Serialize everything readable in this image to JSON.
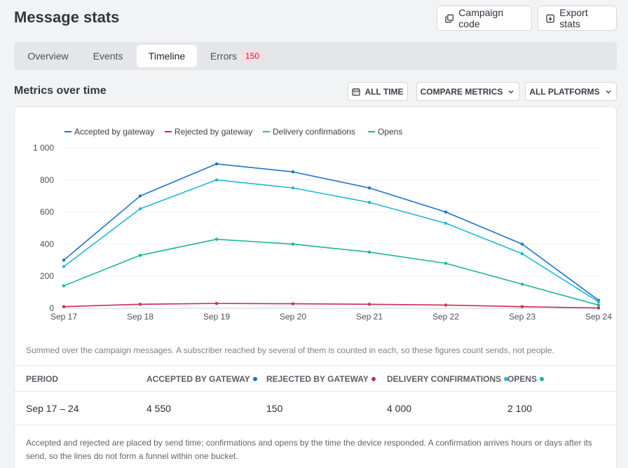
{
  "header": {
    "title": "Message stats",
    "campaign_code_label": "Campaign code",
    "export_stats_label": "Export stats"
  },
  "tabs": [
    {
      "label": "Overview",
      "active": false
    },
    {
      "label": "Events",
      "active": false
    },
    {
      "label": "Timeline",
      "active": true
    },
    {
      "label": "Errors",
      "active": false,
      "badge": "150"
    }
  ],
  "section": {
    "title": "Metrics over time",
    "time_filter_label": "ALL TIME",
    "compare_label": "COMPARE METRICS",
    "platforms_label": "ALL PLATFORMS"
  },
  "colors": {
    "accepted": "#1a73d0",
    "rejected": "#cc2a54",
    "delivery": "#1eb8d8",
    "opens": "#17b89a"
  },
  "chart_data": {
    "type": "line",
    "x": [
      "Sep 17",
      "Sep 18",
      "Sep 19",
      "Sep 20",
      "Sep 21",
      "Sep 22",
      "Sep 23",
      "Sep 24"
    ],
    "ylim": [
      0,
      1000
    ],
    "yticks": [
      "0",
      "200",
      "400",
      "600",
      "800",
      "1 000"
    ],
    "grid": true,
    "legend_position": "top-left",
    "series": [
      {
        "name": "Accepted by gateway",
        "color": "#1a73d0",
        "values": [
          300,
          700,
          900,
          850,
          750,
          600,
          400,
          50
        ]
      },
      {
        "name": "Rejected by gateway",
        "color": "#cc2a54",
        "values": [
          10,
          25,
          30,
          28,
          25,
          20,
          10,
          2
        ]
      },
      {
        "name": "Delivery confirmations",
        "color": "#1eb8d8",
        "values": [
          260,
          620,
          800,
          750,
          660,
          530,
          340,
          40
        ]
      },
      {
        "name": "Opens",
        "color": "#17b89a",
        "values": [
          140,
          330,
          430,
          400,
          350,
          280,
          150,
          20
        ]
      }
    ]
  },
  "chart_note": "Summed over the campaign messages. A subscriber reached by several of them is counted in each, so these figures count sends, not people.",
  "table": {
    "columns": [
      "PERIOD",
      "ACCEPTED BY GATEWAY",
      "REJECTED BY GATEWAY",
      "DELIVERY CONFIRMATIONS",
      "OPENS"
    ],
    "row": [
      "Sep 17 – 24",
      "4 550",
      "150",
      "4 000",
      "2 100"
    ]
  },
  "footnote": "Accepted and rejected are placed by send time; confirmations and opens by the time the device responded. A confirmation arrives hours or days after its send, so the lines do not form a funnel within one bucket."
}
